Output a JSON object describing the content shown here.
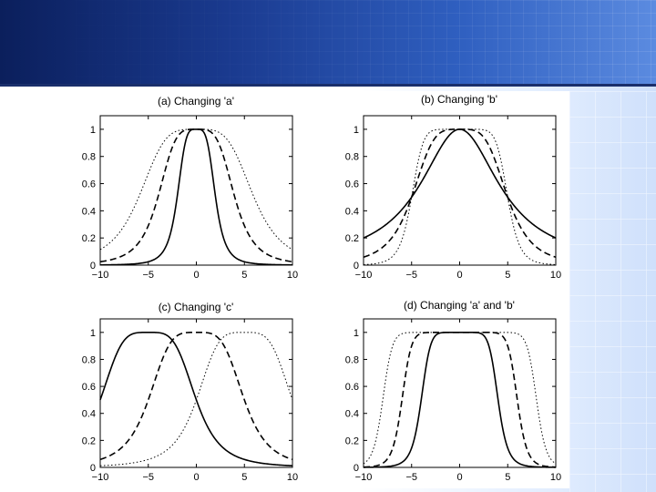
{
  "chart_data": [
    {
      "type": "line",
      "title": "(a) Changing 'a'",
      "xlim": [
        -10,
        10
      ],
      "ylim": [
        0,
        1.1
      ],
      "x_ticks": [
        "−10",
        "−5",
        "0",
        "5",
        "10"
      ],
      "y_ticks": [
        "0",
        "0.2",
        "0.4",
        "0.6",
        "0.8",
        "1"
      ],
      "grid": false,
      "series": [
        {
          "style": "solid",
          "func": "bell",
          "a": 2,
          "b": 2,
          "c": 0
        },
        {
          "style": "dashed",
          "func": "bell",
          "a": 4,
          "b": 2,
          "c": 0
        },
        {
          "style": "dotted",
          "func": "bell",
          "a": 6,
          "b": 2,
          "c": 0
        }
      ]
    },
    {
      "type": "line",
      "title": "(b) Changing 'b'",
      "xlim": [
        -10,
        10
      ],
      "ylim": [
        0,
        1.1
      ],
      "x_ticks": [
        "−10",
        "−5",
        "0",
        "5",
        "10"
      ],
      "y_ticks": [
        "0",
        "0.2",
        "0.4",
        "0.6",
        "0.8",
        "1"
      ],
      "grid": false,
      "series": [
        {
          "style": "solid",
          "func": "bell",
          "a": 5,
          "b": 1,
          "c": 0
        },
        {
          "style": "dashed",
          "func": "bell",
          "a": 5,
          "b": 2,
          "c": 0
        },
        {
          "style": "dotted",
          "func": "bell",
          "a": 5,
          "b": 4,
          "c": 0
        }
      ]
    },
    {
      "type": "line",
      "title": "(c) Changing 'c'",
      "xlim": [
        -10,
        10
      ],
      "ylim": [
        0,
        1.1
      ],
      "x_ticks": [
        "−10",
        "−5",
        "0",
        "5",
        "10"
      ],
      "y_ticks": [
        "0",
        "0.2",
        "0.4",
        "0.6",
        "0.8",
        "1"
      ],
      "grid": false,
      "series": [
        {
          "style": "solid",
          "func": "bell",
          "a": 5,
          "b": 2,
          "c": -5
        },
        {
          "style": "dashed",
          "func": "bell",
          "a": 5,
          "b": 2,
          "c": 0
        },
        {
          "style": "dotted",
          "func": "bell",
          "a": 5,
          "b": 2,
          "c": 5
        }
      ]
    },
    {
      "type": "line",
      "title": "(d) Changing 'a' and 'b'",
      "xlim": [
        -10,
        10
      ],
      "ylim": [
        0,
        1.1
      ],
      "x_ticks": [
        "−10",
        "−5",
        "0",
        "5",
        "10"
      ],
      "y_ticks": [
        "0",
        "0.2",
        "0.4",
        "0.6",
        "0.8",
        "1"
      ],
      "grid": false,
      "series": [
        {
          "style": "solid",
          "func": "bell",
          "a": 4,
          "b": 4,
          "c": 0
        },
        {
          "style": "dashed",
          "func": "bell",
          "a": 6,
          "b": 6,
          "c": 0
        },
        {
          "style": "dotted",
          "func": "bell",
          "a": 8,
          "b": 8,
          "c": 0
        }
      ]
    }
  ],
  "colors": {
    "header_dark": "#0b1f5c",
    "header_light": "#5b8be0",
    "line": "#000000"
  }
}
